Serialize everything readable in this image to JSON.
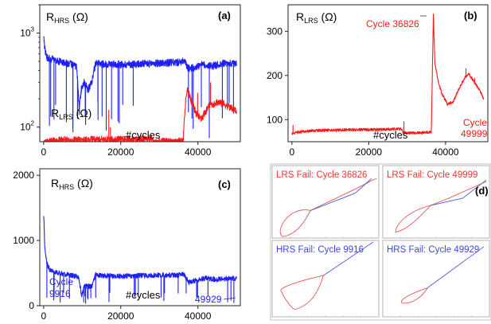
{
  "colors": {
    "hrs": "#1f1fff",
    "lrs": "#ff1a1a",
    "fail_lrs": "#e8382f",
    "fail_hrs": "#3a4ad6",
    "frame": "#222222",
    "inset_frame": "#b5b5b5"
  },
  "chart_data": [
    {
      "panel": "(a)",
      "type": "line",
      "yscale": "log",
      "xlim": [
        -1000,
        51000
      ],
      "ylim": [
        70,
        2000
      ],
      "xticks": [
        0,
        20000,
        40000
      ],
      "xtick_labels": [
        "0",
        "20000",
        "40000"
      ],
      "yticks": [
        100,
        1000
      ],
      "ytick_labels": [
        "10²",
        "10³"
      ],
      "annotations": {
        "hrs": "R_HRS (Ω)",
        "lrs": "R_LRS (Ω)",
        "xlabel": "#cycles"
      },
      "series": [
        {
          "key": "hrs",
          "color": "#1f1fff",
          "points": [
            [
              0,
              900
            ],
            [
              300,
              680
            ],
            [
              800,
              560
            ],
            [
              1500,
              540
            ],
            [
              3000,
              510
            ],
            [
              5000,
              490
            ],
            [
              7000,
              470
            ],
            [
              8500,
              440
            ],
            [
              9200,
              140
            ],
            [
              9800,
              260
            ],
            [
              10500,
              300
            ],
            [
              11500,
              250
            ],
            [
              12500,
              300
            ],
            [
              13500,
              480
            ],
            [
              15000,
              470
            ],
            [
              20000,
              465
            ],
            [
              25000,
              470
            ],
            [
              30000,
              480
            ],
            [
              35000,
              490
            ],
            [
              36500,
              500
            ],
            [
              37500,
              420
            ],
            [
              39000,
              430
            ],
            [
              41000,
              460
            ],
            [
              44000,
              450
            ],
            [
              47000,
              480
            ],
            [
              49000,
              470
            ],
            [
              50000,
              480
            ]
          ]
        },
        {
          "key": "lrs",
          "color": "#ff1a1a",
          "points": [
            [
              0,
              68
            ],
            [
              2000,
              71
            ],
            [
              5000,
              73
            ],
            [
              10000,
              73
            ],
            [
              15000,
              74
            ],
            [
              20000,
              74
            ],
            [
              25000,
              74
            ],
            [
              28000,
              75
            ],
            [
              28500,
              70
            ],
            [
              30000,
              70
            ],
            [
              33000,
              70
            ],
            [
              35000,
              71
            ],
            [
              36200,
              71
            ],
            [
              36800,
              180
            ],
            [
              37300,
              250
            ],
            [
              38000,
              200
            ],
            [
              39500,
              140
            ],
            [
              41000,
              125
            ],
            [
              43000,
              170
            ],
            [
              45000,
              185
            ],
            [
              47000,
              175
            ],
            [
              48500,
              160
            ],
            [
              50000,
              150
            ]
          ]
        }
      ]
    },
    {
      "panel": "(b)",
      "type": "line",
      "xlim": [
        -1000,
        51000
      ],
      "ylim": [
        50,
        360
      ],
      "xticks": [
        0,
        20000,
        40000
      ],
      "xtick_labels": [
        "0",
        "20000",
        "40000"
      ],
      "yticks": [
        100,
        200,
        300
      ],
      "ytick_labels": [
        "100",
        "200",
        "300"
      ],
      "annotations": {
        "lrs": "R_LRS (Ω)",
        "xlabel": "#cycles",
        "peak": "Cycle 36826",
        "end1": "Cycle",
        "end2": "49999"
      },
      "series": [
        {
          "key": "lrs",
          "color": "#ff1a1a",
          "points": [
            [
              0,
              68
            ],
            [
              2000,
              72
            ],
            [
              5000,
              75
            ],
            [
              10000,
              76
            ],
            [
              15000,
              77
            ],
            [
              20000,
              77
            ],
            [
              25000,
              78
            ],
            [
              28500,
              79
            ],
            [
              29000,
              71
            ],
            [
              32000,
              70
            ],
            [
              35000,
              71
            ],
            [
              36300,
              72
            ],
            [
              36826,
              340
            ],
            [
              37200,
              230
            ],
            [
              38000,
              190
            ],
            [
              39000,
              160
            ],
            [
              40500,
              135
            ],
            [
              42000,
              140
            ],
            [
              43500,
              170
            ],
            [
              45000,
              195
            ],
            [
              46000,
              205
            ],
            [
              47500,
              185
            ],
            [
              49000,
              165
            ],
            [
              50000,
              145
            ]
          ]
        }
      ]
    },
    {
      "panel": "(c)",
      "type": "line",
      "xlim": [
        -1000,
        51000
      ],
      "ylim": [
        0,
        2100
      ],
      "xticks": [
        0,
        20000,
        40000
      ],
      "xtick_labels": [
        "0",
        "20000",
        "40000"
      ],
      "yticks": [
        0,
        1000,
        2000
      ],
      "ytick_labels": [
        "0",
        "1000",
        "2000"
      ],
      "annotations": {
        "hrs": "R_HRS (Ω)",
        "xlabel": "#cycles",
        "c1": "Cycle",
        "c2": "9916",
        "end": "49929"
      },
      "series": [
        {
          "key": "hrs",
          "color": "#1f1fff",
          "points": [
            [
              0,
              1400
            ],
            [
              300,
              900
            ],
            [
              800,
              650
            ],
            [
              1500,
              560
            ],
            [
              3000,
              520
            ],
            [
              5000,
              490
            ],
            [
              7000,
              470
            ],
            [
              9000,
              440
            ],
            [
              9916,
              150
            ],
            [
              10500,
              300
            ],
            [
              12500,
              300
            ],
            [
              13500,
              480
            ],
            [
              15000,
              460
            ],
            [
              20000,
              450
            ],
            [
              25000,
              460
            ],
            [
              30000,
              470
            ],
            [
              35000,
              470
            ],
            [
              36500,
              480
            ],
            [
              37500,
              360
            ],
            [
              39500,
              390
            ],
            [
              42000,
              420
            ],
            [
              45000,
              400
            ],
            [
              48000,
              420
            ],
            [
              50000,
              420
            ]
          ]
        }
      ]
    },
    {
      "panel": "(d)",
      "type": "line",
      "annotations": {
        "panel": "(d)"
      },
      "insets": [
        {
          "label": "LRS Fail: Cycle 36826",
          "kind": "lrs"
        },
        {
          "label": "LRS Fail: Cycle 49999",
          "kind": "lrs"
        },
        {
          "label": "HRS Fail: Cycle 9916",
          "kind": "hrs"
        },
        {
          "label": "HRS Fail: Cycle 49929",
          "kind": "hrs"
        }
      ]
    }
  ]
}
